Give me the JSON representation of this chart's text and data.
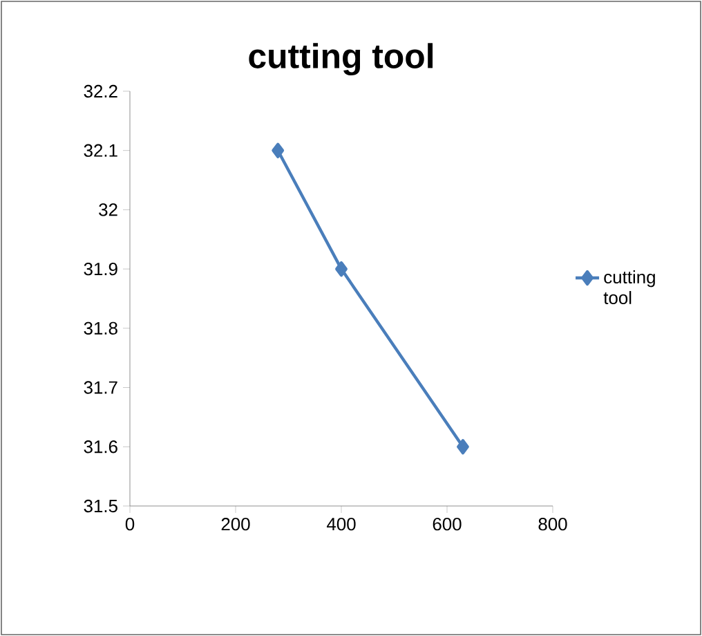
{
  "chart_data": {
    "type": "line",
    "title": "cutting tool",
    "x": [
      280,
      400,
      630
    ],
    "series": [
      {
        "name": "cutting tool",
        "color": "#4a7ebb",
        "values": [
          32.1,
          31.9,
          31.6
        ]
      }
    ],
    "xlim": [
      0,
      800
    ],
    "xticks": [
      0,
      200,
      400,
      600,
      800
    ],
    "ylim": [
      31.5,
      32.2
    ],
    "yticks": [
      31.5,
      31.6,
      31.7,
      31.8,
      31.9,
      32,
      32.1,
      32.2
    ],
    "grid": false,
    "legend": "right",
    "marker": "diamond",
    "line_style": "solid"
  }
}
